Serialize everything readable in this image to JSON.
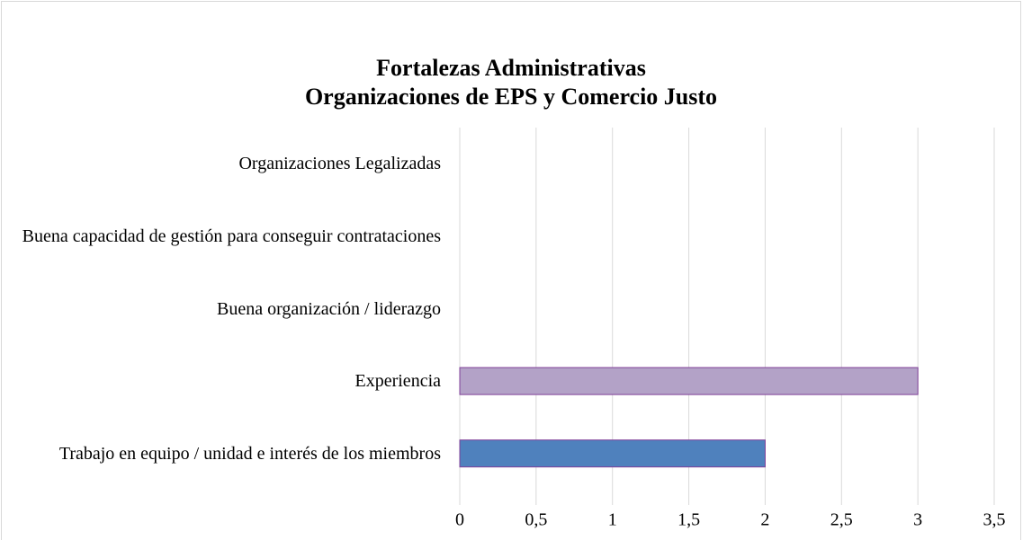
{
  "chart_data": {
    "type": "barh",
    "title": [
      "Fortalezas Administrativas",
      "Organizaciones de EPS y Comercio Justo"
    ],
    "categories": [
      "Organizaciones Legalizadas",
      "Buena capacidad de gestión para conseguir contrataciones",
      "Buena organización  / liderazgo",
      "Experiencia",
      "Trabajo en equipo / unidad e interés de los miembros"
    ],
    "values": [
      0,
      0,
      0,
      3,
      2
    ],
    "colors": [
      "#4f81bd",
      "#4f81bd",
      "#4f81bd",
      "#b3a2c7",
      "#4f81bd"
    ],
    "xlim": [
      0,
      3.5
    ],
    "xticks": [
      0,
      {
        "value": 0.5,
        "label": "0,5"
      },
      1,
      {
        "value": 1.5,
        "label": "1,5"
      },
      2,
      {
        "value": 2.5,
        "label": "2,5"
      },
      3,
      {
        "value": 3.5,
        "label": "3,5"
      }
    ],
    "grid": true
  }
}
